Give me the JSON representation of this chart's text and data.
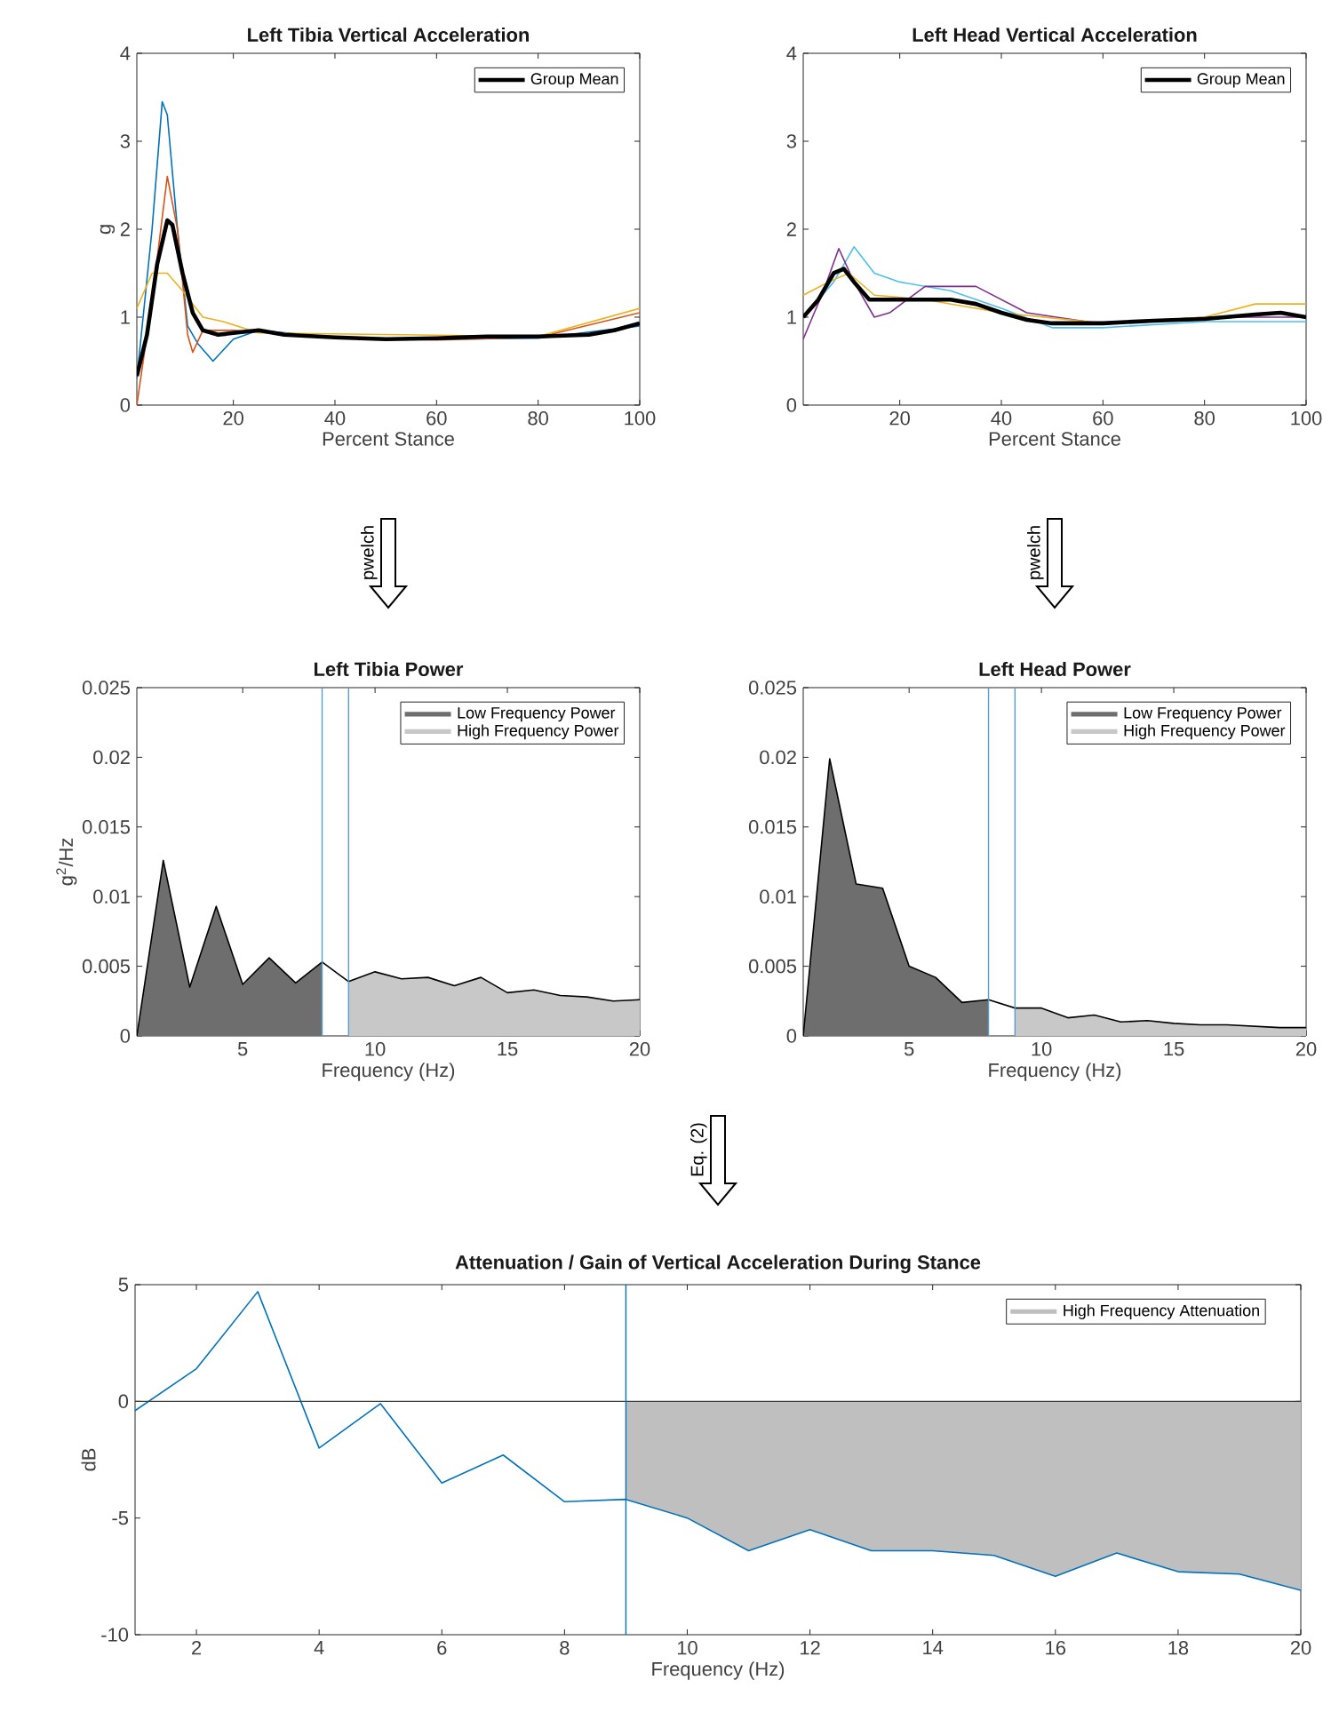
{
  "chart_data": [
    {
      "type": "line",
      "title": "Left Tibia Vertical Acceleration",
      "xlabel": "Percent Stance",
      "ylabel": "g",
      "xlim": [
        1,
        100
      ],
      "ylim": [
        0,
        4
      ],
      "xticks": [
        20,
        40,
        60,
        80,
        100
      ],
      "yticks": [
        0,
        1,
        2,
        3,
        4
      ],
      "legend": "top right",
      "series": [
        {
          "color": "#0072bd",
          "x": [
            1,
            4,
            6,
            7,
            9,
            11,
            13,
            16,
            20,
            25,
            40,
            60,
            80,
            100
          ],
          "values": [
            0.3,
            2.0,
            3.45,
            3.3,
            2.0,
            0.9,
            0.7,
            0.5,
            0.75,
            0.85,
            0.77,
            0.75,
            0.76,
            0.9
          ]
        },
        {
          "color": "#d95319",
          "x": [
            1,
            4,
            7,
            9,
            11,
            12,
            14,
            20,
            40,
            60,
            80,
            100
          ],
          "values": [
            0,
            1.2,
            2.6,
            2.0,
            0.8,
            0.6,
            0.85,
            0.85,
            0.77,
            0.74,
            0.77,
            1.05
          ]
        },
        {
          "color": "#edb120",
          "x": [
            1,
            4,
            7,
            10,
            14,
            18,
            25,
            80,
            100
          ],
          "values": [
            1.1,
            1.5,
            1.5,
            1.3,
            1.0,
            0.95,
            0.82,
            0.78,
            1.1
          ]
        },
        {
          "name": "Group Mean",
          "color": "#000000",
          "x": [
            1,
            3,
            5,
            7,
            8,
            10,
            12,
            14,
            17,
            20,
            25,
            30,
            40,
            50,
            60,
            70,
            80,
            90,
            95,
            100
          ],
          "values": [
            0.33,
            0.8,
            1.6,
            2.1,
            2.05,
            1.5,
            1.05,
            0.85,
            0.8,
            0.82,
            0.85,
            0.8,
            0.77,
            0.75,
            0.76,
            0.78,
            0.78,
            0.8,
            0.85,
            0.93
          ]
        }
      ]
    },
    {
      "type": "line",
      "title": "Left Head Vertical Acceleration",
      "xlabel": "Percent Stance",
      "xlim": [
        1,
        100
      ],
      "ylim": [
        0,
        4
      ],
      "xticks": [
        20,
        40,
        60,
        80,
        100
      ],
      "yticks": [
        0,
        1,
        2,
        3,
        4
      ],
      "legend": "top right",
      "series": [
        {
          "color": "#4dbeee",
          "x": [
            1,
            7,
            11,
            15,
            20,
            30,
            40,
            50,
            60,
            80,
            100
          ],
          "values": [
            1.0,
            1.4,
            1.8,
            1.5,
            1.4,
            1.3,
            1.1,
            0.88,
            0.88,
            0.95,
            0.95
          ]
        },
        {
          "color": "#7e2f8e",
          "x": [
            1,
            5,
            8,
            11,
            15,
            18,
            25,
            35,
            45,
            60,
            80,
            100
          ],
          "values": [
            0.75,
            1.3,
            1.78,
            1.4,
            1.0,
            1.05,
            1.35,
            1.35,
            1.05,
            0.92,
            1.0,
            1.0
          ]
        },
        {
          "color": "#edb120",
          "x": [
            1,
            6,
            10,
            15,
            25,
            40,
            60,
            80,
            90,
            100
          ],
          "values": [
            1.25,
            1.4,
            1.5,
            1.25,
            1.2,
            1.05,
            0.93,
            1.0,
            1.15,
            1.15
          ]
        },
        {
          "name": "Group Mean",
          "color": "#000000",
          "x": [
            1,
            4,
            7,
            9,
            11,
            14,
            20,
            25,
            30,
            35,
            40,
            45,
            50,
            60,
            70,
            80,
            90,
            95,
            100
          ],
          "values": [
            1.0,
            1.2,
            1.5,
            1.55,
            1.4,
            1.2,
            1.2,
            1.2,
            1.2,
            1.15,
            1.05,
            0.97,
            0.93,
            0.93,
            0.96,
            0.98,
            1.03,
            1.05,
            1.0
          ]
        }
      ]
    },
    {
      "type": "line",
      "title": "Left Tibia Power",
      "xlabel": "Frequency (Hz)",
      "ylabel": "g$^{2}$/Hz",
      "annotations": [
        "pwelch"
      ],
      "xlim": [
        1,
        20
      ],
      "ylim": [
        0,
        0.025
      ],
      "xticks": [
        5,
        10,
        15,
        20
      ],
      "yticks": [
        0,
        0.005,
        0.01,
        0.015,
        0.02,
        0.025
      ],
      "legend": "top right",
      "series": [
        {
          "name": "Low Frequency Power",
          "type": "area",
          "color": "#6e6e6e",
          "x": [
            1,
            2,
            3,
            4,
            5,
            6,
            7,
            8
          ],
          "values": [
            0,
            0.0126,
            0.0035,
            0.0093,
            0.0037,
            0.0056,
            0.0038,
            0.0053
          ]
        },
        {
          "name": "High Frequency Power",
          "type": "area",
          "color": "#c8c8c8",
          "x": [
            9,
            10,
            11,
            12,
            13,
            14,
            15,
            16,
            17,
            18,
            19,
            20
          ],
          "values": [
            0.0039,
            0.0046,
            0.0041,
            0.0042,
            0.0036,
            0.0042,
            0.0031,
            0.0033,
            0.0029,
            0.0028,
            0.0025,
            0.0026
          ]
        },
        {
          "color": "#000000",
          "x": [
            1,
            2,
            3,
            4,
            5,
            6,
            7,
            8,
            9,
            10,
            11,
            12,
            13,
            14,
            15,
            16,
            17,
            18,
            19,
            20
          ],
          "values": [
            0,
            0.0126,
            0.0035,
            0.0093,
            0.0037,
            0.0056,
            0.0038,
            0.0053,
            0.0039,
            0.0046,
            0.0041,
            0.0042,
            0.0036,
            0.0042,
            0.0031,
            0.0033,
            0.0029,
            0.0028,
            0.0025,
            0.0026
          ]
        }
      ],
      "ref_lines": [
        {
          "axis": "x",
          "value": 8,
          "color": "#5b9bd5"
        },
        {
          "axis": "x",
          "value": 9,
          "color": "#5b9bd5"
        }
      ]
    },
    {
      "type": "line",
      "title": "Left Head Power",
      "xlabel": "Frequency (Hz)",
      "annotations": [
        "pwelch"
      ],
      "xlim": [
        1,
        20
      ],
      "ylim": [
        0,
        0.025
      ],
      "xticks": [
        5,
        10,
        15,
        20
      ],
      "yticks": [
        0,
        0.005,
        0.01,
        0.015,
        0.02,
        0.025
      ],
      "legend": "top right",
      "series": [
        {
          "name": "Low Frequency Power",
          "type": "area",
          "color": "#6e6e6e",
          "x": [
            1,
            2,
            3,
            4,
            5,
            6,
            7,
            8
          ],
          "values": [
            0,
            0.0199,
            0.0109,
            0.0106,
            0.005,
            0.0042,
            0.0024,
            0.0026
          ]
        },
        {
          "name": "High Frequency Power",
          "type": "area",
          "color": "#c8c8c8",
          "x": [
            9,
            10,
            11,
            12,
            13,
            14,
            15,
            16,
            17,
            18,
            19,
            20
          ],
          "values": [
            0.002,
            0.002,
            0.0013,
            0.0015,
            0.001,
            0.0011,
            0.0009,
            0.0008,
            0.0008,
            0.0007,
            0.0006,
            0.0006
          ]
        },
        {
          "color": "#000000",
          "x": [
            1,
            2,
            3,
            4,
            5,
            6,
            7,
            8,
            9,
            10,
            11,
            12,
            13,
            14,
            15,
            16,
            17,
            18,
            19,
            20
          ],
          "values": [
            0,
            0.0199,
            0.0109,
            0.0106,
            0.005,
            0.0042,
            0.0024,
            0.0026,
            0.002,
            0.002,
            0.0013,
            0.0015,
            0.001,
            0.0011,
            0.0009,
            0.0008,
            0.0008,
            0.0007,
            0.0006,
            0.0006
          ]
        }
      ],
      "ref_lines": [
        {
          "axis": "x",
          "value": 8,
          "color": "#5b9bd5"
        },
        {
          "axis": "x",
          "value": 9,
          "color": "#5b9bd5"
        }
      ]
    },
    {
      "type": "line",
      "title": "Attenuation / Gain of Vertical Acceleration During Stance",
      "xlabel": "Frequency (Hz)",
      "ylabel": "dB",
      "annotations": [
        "Eq. (2)"
      ],
      "xlim": [
        1,
        20
      ],
      "ylim": [
        -10,
        5
      ],
      "xticks": [
        2,
        4,
        6,
        8,
        10,
        12,
        14,
        16,
        18,
        20
      ],
      "yticks": [
        -10,
        -5,
        0,
        5
      ],
      "legend": "top right",
      "series": [
        {
          "name": "High Frequency Attenuation",
          "type": "area",
          "color": "#bfbfbf",
          "x": [
            9,
            10,
            11,
            12,
            13,
            14,
            15,
            16,
            17,
            18,
            19,
            20
          ],
          "values": [
            -4.2,
            -5.0,
            -6.4,
            -5.5,
            -6.4,
            -6.4,
            -6.6,
            -7.5,
            -6.5,
            -7.3,
            -7.4,
            -8.1
          ]
        },
        {
          "color": "#0072bd",
          "x": [
            1,
            2,
            3,
            4,
            5,
            6,
            7,
            8,
            9,
            10,
            11,
            12,
            13,
            14,
            15,
            16,
            17,
            18,
            19,
            20
          ],
          "values": [
            -0.4,
            1.4,
            4.7,
            -2.0,
            -0.1,
            -3.5,
            -2.3,
            -4.3,
            -4.2,
            -5.0,
            -6.4,
            -5.5,
            -6.4,
            -6.4,
            -6.6,
            -7.5,
            -6.5,
            -7.3,
            -7.4,
            -8.1
          ]
        }
      ],
      "ref_lines": [
        {
          "axis": "y",
          "value": 0,
          "color": "#404040"
        },
        {
          "axis": "x",
          "value": 9,
          "color": "#0072bd"
        }
      ]
    }
  ]
}
